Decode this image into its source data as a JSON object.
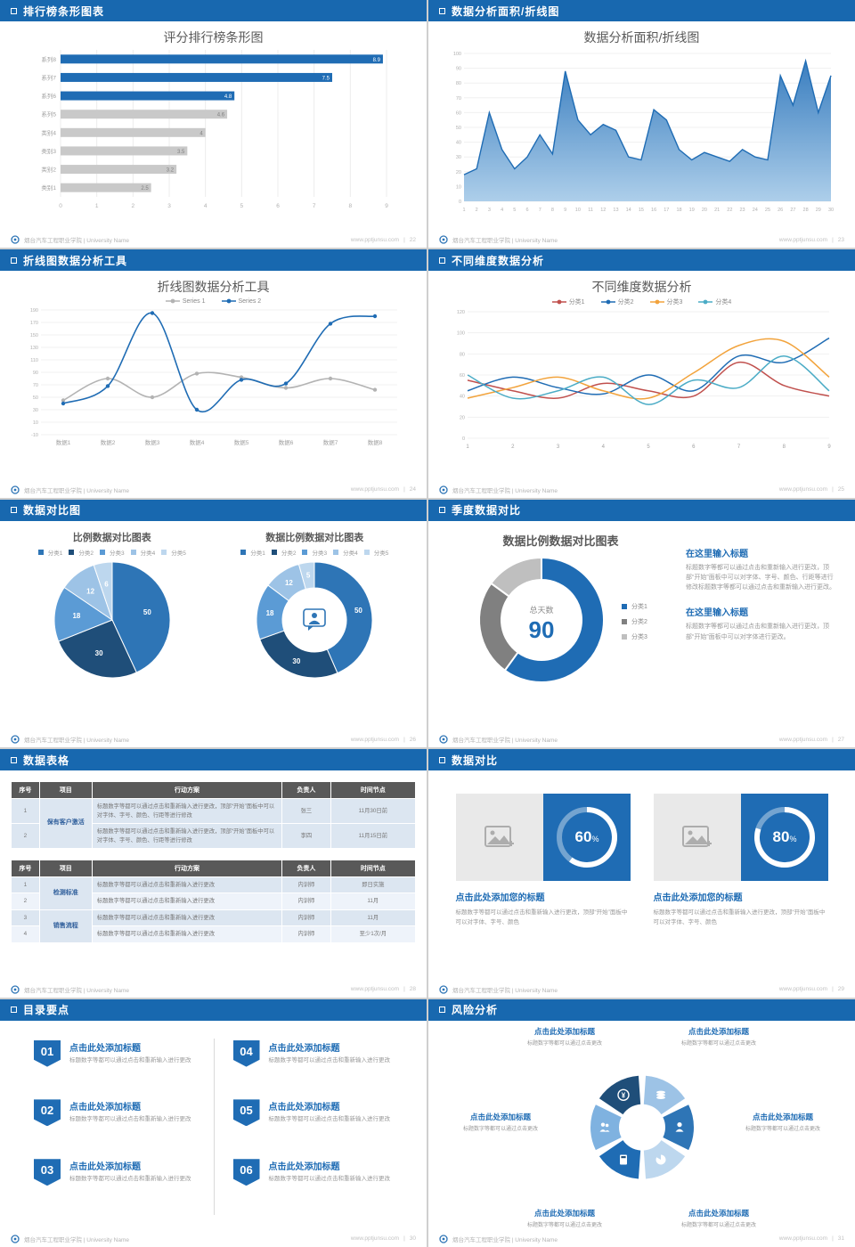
{
  "footer": {
    "org": "烟台汽车工程职业学院 | University Name",
    "site": "www.pptjunsu.com",
    "divider": "|"
  },
  "slides": [
    {
      "header": "排行榜条形图表",
      "page": "22",
      "title": "评分排行榜条形图",
      "chart": {
        "type": "bar",
        "categories": [
          "系列8",
          "系列7",
          "系列6",
          "系列5",
          "类别4",
          "类别3",
          "类别2",
          "类别1"
        ],
        "values": [
          8.9,
          7.5,
          4.8,
          4.6,
          4,
          3.5,
          3.2,
          2.5
        ],
        "bar_colors": [
          "#1F6CB4",
          "#1F6CB4",
          "#1F6CB4",
          "#C9C9C9",
          "#C9C9C9",
          "#C9C9C9",
          "#C9C9C9",
          "#C9C9C9"
        ],
        "xlim": [
          0,
          9
        ],
        "xticks": [
          0,
          1,
          2,
          3,
          4,
          5,
          6,
          7,
          8,
          9
        ]
      }
    },
    {
      "header": "数据分析面积/折线图",
      "page": "23",
      "title": "数据分析面积/折线图",
      "chart": {
        "type": "area",
        "x": [
          1,
          2,
          3,
          4,
          5,
          6,
          7,
          8,
          9,
          10,
          11,
          12,
          13,
          14,
          15,
          16,
          17,
          18,
          19,
          20,
          21,
          22,
          23,
          24,
          25,
          26,
          27,
          28,
          29,
          30
        ],
        "values": [
          18,
          22,
          60,
          35,
          22,
          30,
          45,
          32,
          88,
          55,
          45,
          52,
          48,
          30,
          28,
          62,
          55,
          35,
          28,
          33,
          30,
          27,
          35,
          30,
          28,
          85,
          65,
          95,
          60,
          85
        ],
        "ylim": [
          0,
          100
        ],
        "yticks": [
          0,
          10,
          20,
          30,
          40,
          50,
          60,
          70,
          80,
          90,
          100
        ],
        "line_color": "#1F6CB4",
        "fill_top": "#2F77BC",
        "fill_bottom": "#A9CCE9"
      }
    },
    {
      "header": "折线图数据分析工具",
      "page": "24",
      "title": "折线图数据分析工具",
      "chart": {
        "type": "line",
        "categories": [
          "数据1",
          "数据2",
          "数据3",
          "数据4",
          "数据5",
          "数据6",
          "数据7",
          "数据8"
        ],
        "series": [
          {
            "name": "Series 1",
            "color": "#B3B3B3",
            "values": [
              45,
              80,
              50,
              88,
              82,
              65,
              80,
              62
            ]
          },
          {
            "name": "Series 2",
            "color": "#1F6CB4",
            "values": [
              40,
              68,
              185,
              30,
              78,
              72,
              168,
              180
            ]
          }
        ],
        "ylim": [
          -10,
          190
        ],
        "ytick_step": 20
      }
    },
    {
      "header": "不同维度数据分析",
      "page": "25",
      "title": "不同维度数据分析",
      "chart": {
        "type": "line",
        "x": [
          1,
          2,
          3,
          4,
          5,
          6,
          7,
          8,
          9
        ],
        "series": [
          {
            "name": "分类1",
            "color": "#C0504D",
            "values": [
              55,
              45,
              38,
              52,
              45,
              40,
              72,
              50,
              40
            ]
          },
          {
            "name": "分类2",
            "color": "#1F6CB4",
            "values": [
              45,
              58,
              48,
              42,
              60,
              45,
              78,
              72,
              95
            ]
          },
          {
            "name": "分类3",
            "color": "#F2A33C",
            "values": [
              38,
              48,
              58,
              45,
              38,
              62,
              88,
              92,
              58
            ]
          },
          {
            "name": "分类4",
            "color": "#4BACC6",
            "values": [
              60,
              38,
              45,
              58,
              32,
              55,
              48,
              78,
              45
            ]
          }
        ],
        "ylim": [
          0,
          120
        ],
        "ytick_step": 20
      }
    },
    {
      "header": "数据对比图",
      "page": "26",
      "pie1": {
        "type": "pie",
        "title": "比例数据对比图表",
        "legend": [
          "分类1",
          "分类2",
          "分类3",
          "分类4",
          "分类5"
        ],
        "values": [
          50,
          30,
          18,
          12,
          6
        ],
        "colors": [
          "#2E75B6",
          "#1F4E79",
          "#5B9BD5",
          "#9DC3E6",
          "#BDD7EE"
        ]
      },
      "pie2": {
        "type": "donut",
        "title": "数据比例数据对比图表",
        "legend": [
          "分类1",
          "分类2",
          "分类3",
          "分类4",
          "分类5"
        ],
        "values": [
          50,
          30,
          18,
          12,
          5
        ],
        "colors": [
          "#2E75B6",
          "#1F4E79",
          "#5B9BD5",
          "#9DC3E6",
          "#BDD7EE"
        ]
      }
    },
    {
      "header": "季度数据对比",
      "page": "27",
      "donut": {
        "type": "donut",
        "title": "数据比例数据对比图表",
        "center_label": "总天数",
        "center_value": "90",
        "values": [
          60,
          25,
          15
        ],
        "legend": [
          {
            "label": "分类1",
            "color": "#1F6CB4"
          },
          {
            "label": "分类2",
            "color": "#808080"
          },
          {
            "label": "分类3",
            "color": "#BFBFBF"
          }
        ]
      },
      "blocks": [
        {
          "heading": "在这里输入标题",
          "body": "标题数字等都可以通过点击和重新输入进行更改，顶部“开始”面板中可以对字体、字号、颜色、行距等进行修改标题数字等都可以通过点击和重新输入进行更改。"
        },
        {
          "heading": "在这里输入标题",
          "body": "标题数字等都可以通过点击和重新输入进行更改，顶部“开始”面板中可以对字体进行更改。"
        }
      ]
    },
    {
      "header": "数据表格",
      "page": "28",
      "table1": {
        "columns": [
          "序号",
          "项目",
          "行动方案",
          "负责人",
          "时间节点"
        ],
        "rows": [
          {
            "no": "1",
            "project": "保有客户激活",
            "span": 2,
            "action": "标题数字等都可以通过点击和重新输入进行更改，顶部“开始”面板中可以对字体、字号、颜色、行距等进行修改",
            "owner": "张三",
            "time": "11月30日前"
          },
          {
            "no": "2",
            "action": "标题数字等都可以通过点击和重新输入进行更改，顶部“开始”面板中可以对字体、字号、颜色、行距等进行修改",
            "owner": "李四",
            "time": "11月15日前"
          }
        ]
      },
      "table2": {
        "columns": [
          "序号",
          "项目",
          "行动方案",
          "负责人",
          "时间节点"
        ],
        "rows": [
          {
            "no": "1",
            "project": "检测标准",
            "span": 2,
            "action": "标题数字等都可以通过点击和重新输入进行更改",
            "owner": "内训师",
            "time": "即日实施"
          },
          {
            "no": "2",
            "action": "标题数字等都可以通过点击和重新输入进行更改",
            "owner": "内训师",
            "time": "11月"
          },
          {
            "no": "3",
            "project": "销售流程",
            "span": 2,
            "action": "标题数字等都可以通过点击和重新输入进行更改",
            "owner": "内训师",
            "time": "11月"
          },
          {
            "no": "4",
            "action": "标题数字等都可以通过点击和重新输入进行更改",
            "owner": "内训师",
            "time": "至少1次/月"
          }
        ]
      }
    },
    {
      "header": "数据对比",
      "page": "29",
      "cards": [
        {
          "percent": 60,
          "title": "点击此处添加您的标题",
          "body": "标题数字等都可以通过点击和重新输入进行更改，顶部“开始”面板中可以对字体、字号、颜色"
        },
        {
          "percent": 80,
          "title": "点击此处添加您的标题",
          "body": "标题数字等都可以通过点击和重新输入进行更改，顶部“开始”面板中可以对字体、字号、颜色"
        }
      ]
    },
    {
      "header": "目录要点",
      "page": "30",
      "items": [
        {
          "num": "01",
          "title": "点击此处添加标题",
          "body": "标题数字等都可以通过点击和重新输入进行更改"
        },
        {
          "num": "02",
          "title": "点击此处添加标题",
          "body": "标题数字等都可以通过点击和重新输入进行更改"
        },
        {
          "num": "03",
          "title": "点击此处添加标题",
          "body": "标题数字等都可以通过点击和重新输入进行更改"
        },
        {
          "num": "04",
          "title": "点击此处添加标题",
          "body": "标题数字等都可以通过点击和重新输入进行更改"
        },
        {
          "num": "05",
          "title": "点击此处添加标题",
          "body": "标题数字等都可以通过点击和重新输入进行更改"
        },
        {
          "num": "06",
          "title": "点击此处添加标题",
          "body": "标题数字等都可以通过点击和重新输入进行更改"
        }
      ]
    },
    {
      "header": "风险分析",
      "page": "31",
      "labels": [
        {
          "pos": "tl",
          "title": "点击此处添加标题",
          "body": "标题数字等都可以通过点击更改"
        },
        {
          "pos": "tr",
          "title": "点击此处添加标题",
          "body": "标题数字等都可以通过点击更改"
        },
        {
          "pos": "ml",
          "title": "点击此处添加标题",
          "body": "标题数字等都可以通过点击更改"
        },
        {
          "pos": "mr",
          "title": "点击此处添加标题",
          "body": "标题数字等都可以通过点击更改"
        },
        {
          "pos": "bl",
          "title": "点击此处添加标题",
          "body": "标题数字等都可以通过点击更改"
        },
        {
          "pos": "br",
          "title": "点击此处添加标题",
          "body": "标题数字等都可以通过点击更改"
        }
      ]
    }
  ]
}
